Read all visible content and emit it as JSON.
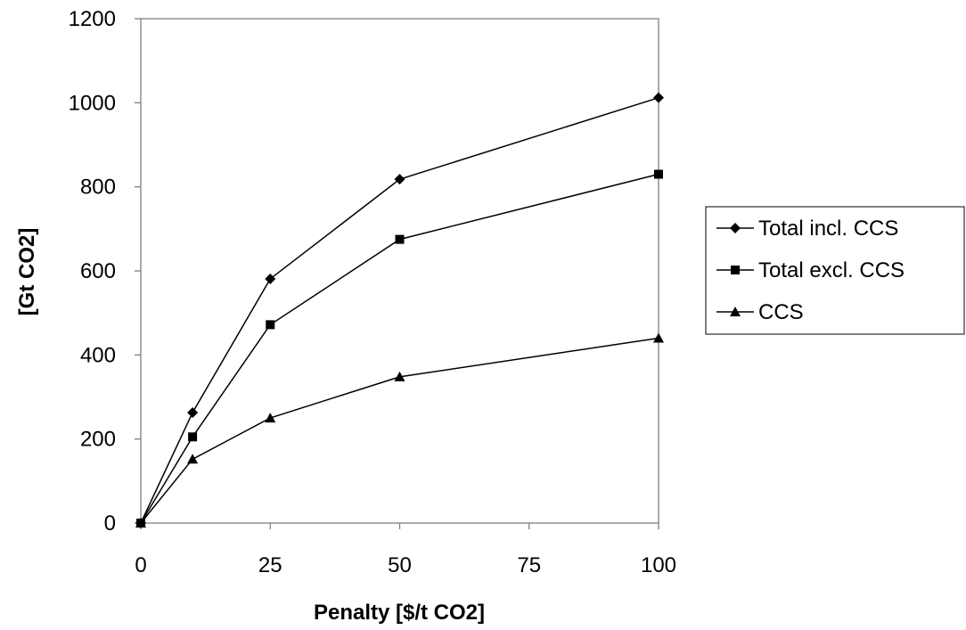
{
  "chart_data": {
    "type": "line",
    "title": "",
    "xlabel": "Penalty [$/t CO2]",
    "ylabel": "[Gt CO2]",
    "x": [
      0,
      10,
      25,
      50,
      100
    ],
    "x_ticks": [
      0,
      25,
      50,
      75,
      100
    ],
    "xlim": [
      0,
      100
    ],
    "y_ticks": [
      0,
      200,
      400,
      600,
      800,
      1000,
      1200
    ],
    "ylim": [
      0,
      1200
    ],
    "grid": false,
    "legend_position": "right",
    "series": [
      {
        "name": "Total incl. CCS",
        "marker": "diamond",
        "values": [
          0,
          263,
          581,
          818,
          1012
        ]
      },
      {
        "name": "Total excl. CCS",
        "marker": "square",
        "values": [
          0,
          205,
          472,
          675,
          830
        ]
      },
      {
        "name": "CCS",
        "marker": "triangle",
        "values": [
          0,
          152,
          250,
          348,
          440
        ]
      }
    ],
    "colors": {
      "line": "#000000",
      "frame": "#808080",
      "background": "#ffffff"
    }
  }
}
